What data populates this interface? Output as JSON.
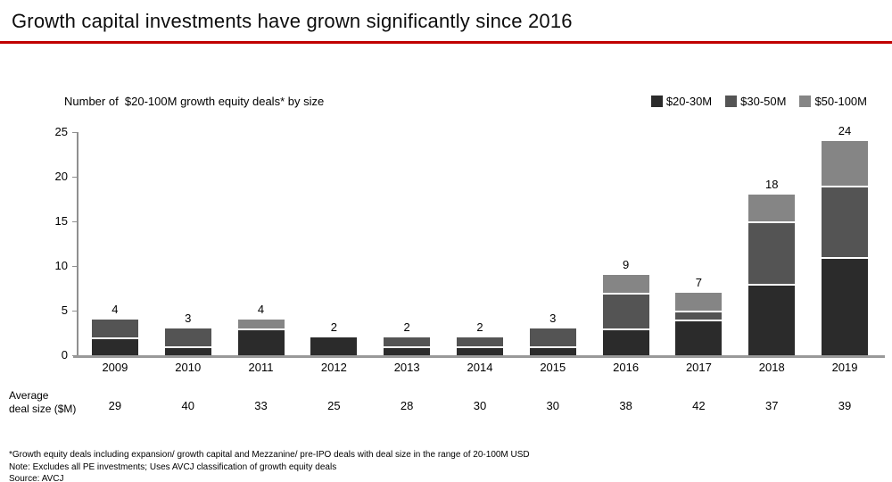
{
  "header": {
    "title": "Growth capital investments have grown significantly since 2016",
    "accent_color": "#C00000"
  },
  "chart_data": {
    "type": "bar",
    "stacked": true,
    "title": "Number of  $20-100M growth equity deals* by size",
    "categories": [
      "2009",
      "2010",
      "2011",
      "2012",
      "2013",
      "2014",
      "2015",
      "2016",
      "2017",
      "2018",
      "2019"
    ],
    "series": [
      {
        "name": "$20-30M",
        "color": "#2b2b2b",
        "values": [
          2,
          1,
          3,
          2,
          1,
          1,
          1,
          3,
          4,
          8,
          11
        ]
      },
      {
        "name": "$30-50M",
        "color": "#545454",
        "values": [
          2,
          2,
          0,
          0,
          1,
          1,
          2,
          4,
          1,
          7,
          8
        ]
      },
      {
        "name": "$50-100M",
        "color": "#858585",
        "values": [
          0,
          0,
          1,
          0,
          0,
          0,
          0,
          2,
          2,
          3,
          5
        ]
      }
    ],
    "totals": [
      4,
      3,
      4,
      2,
      2,
      2,
      3,
      9,
      7,
      18,
      24
    ],
    "ylim": [
      0,
      25
    ],
    "yticks": [
      0,
      5,
      10,
      15,
      20,
      25
    ],
    "grid": false,
    "legend_position": "top-right",
    "axis_color": "#8f8f8f"
  },
  "average_row": {
    "label": "Average\ndeal size ($M)",
    "values": [
      "29",
      "40",
      "33",
      "25",
      "28",
      "30",
      "30",
      "38",
      "42",
      "37",
      "39"
    ]
  },
  "footnotes": [
    "*Growth equity deals including expansion/ growth capital and Mezzanine/ pre-IPO deals with deal size in the range of 20-100M USD",
    "Note: Excludes all PE investments; Uses AVCJ classification of growth equity deals",
    "Source: AVCJ"
  ]
}
